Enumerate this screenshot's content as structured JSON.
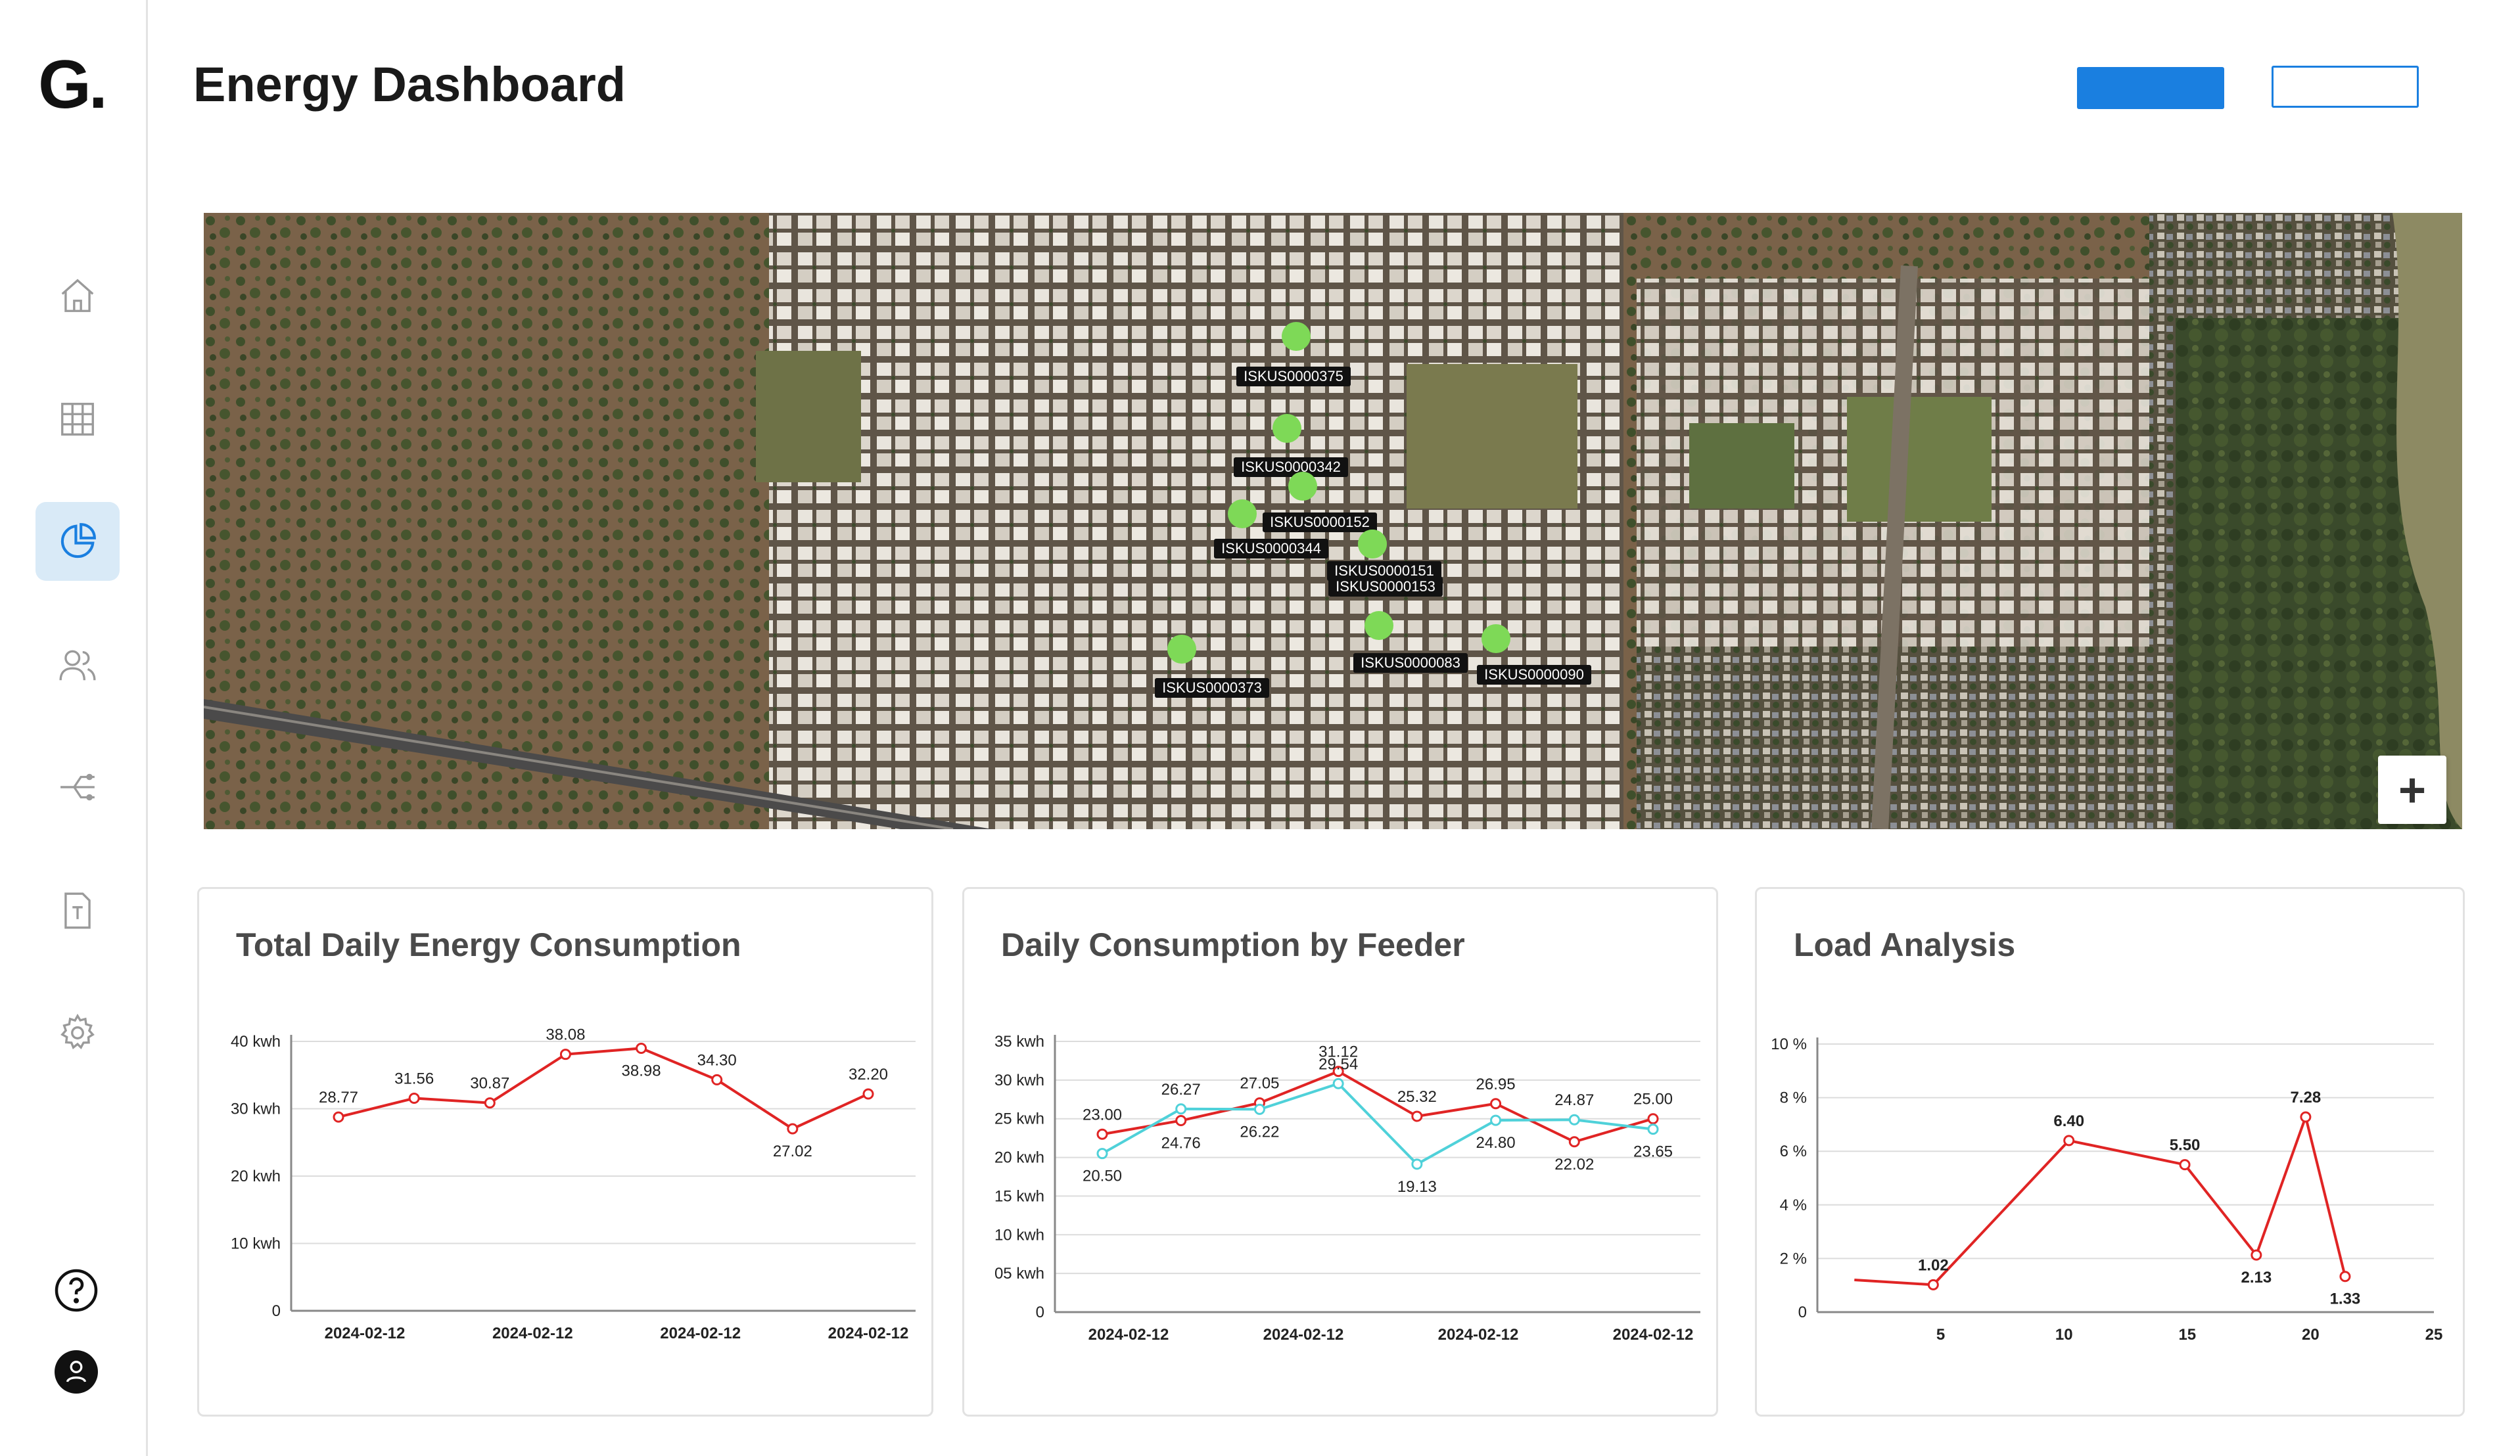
{
  "app": {
    "logo": "G.",
    "title": "Energy Dashboard"
  },
  "header": {
    "primary_button_label": "",
    "secondary_button_label": ""
  },
  "sidebar": {
    "items": [
      {
        "name": "home",
        "icon": "home-icon",
        "active": false
      },
      {
        "name": "grid",
        "icon": "grid-icon",
        "active": false
      },
      {
        "name": "analytics",
        "icon": "pie-chart-icon",
        "active": true
      },
      {
        "name": "users",
        "icon": "users-icon",
        "active": false
      },
      {
        "name": "routing",
        "icon": "route-icon",
        "active": false
      },
      {
        "name": "templates",
        "icon": "document-icon",
        "active": false
      },
      {
        "name": "settings",
        "icon": "gear-icon",
        "active": false
      }
    ],
    "bottom": [
      {
        "name": "help",
        "icon": "help-icon"
      },
      {
        "name": "profile",
        "icon": "user-avatar-icon"
      }
    ]
  },
  "map": {
    "zoom_label": "+",
    "marker_color": "#7ed957",
    "markers": [
      {
        "label": "ISKUS0000375"
      },
      {
        "label": "ISKUS0000342"
      },
      {
        "label": "ISKUS0000152"
      },
      {
        "label": "ISKUS0000344"
      },
      {
        "label": "ISKUS0000151"
      },
      {
        "label": "ISKUS0000153"
      },
      {
        "label": "ISKUS0000083"
      },
      {
        "label": "ISKUS0000090"
      },
      {
        "label": "ISKUS0000373"
      }
    ]
  },
  "colors": {
    "accent": "#1a7fe0",
    "series_red": "#e02424",
    "series_cyan": "#4fd1d9",
    "active_nav_bg": "#d9eaf7"
  },
  "chart_data": [
    {
      "type": "line",
      "title": "Total Daily Energy Consumption",
      "x_tick_labels": [
        "2024-02-12",
        "2024-02-12",
        "2024-02-12",
        "2024-02-12"
      ],
      "y_tick_labels": [
        "0",
        "10 kwh",
        "20 kwh",
        "30 kwh",
        "40 kwh"
      ],
      "ylim": [
        0,
        40
      ],
      "grid": true,
      "series": [
        {
          "color": "#e02424",
          "values": [
            28.77,
            31.56,
            30.87,
            38.08,
            38.98,
            34.3,
            27.02,
            32.2
          ],
          "labels": [
            "28.77",
            "31.56",
            "30.87",
            "38.08",
            "38.98",
            "34.30",
            "27.02",
            "32.20"
          ]
        }
      ]
    },
    {
      "type": "line",
      "title": "Daily Consumption by Feeder",
      "x_tick_labels": [
        "2024-02-12",
        "2024-02-12",
        "2024-02-12",
        "2024-02-12"
      ],
      "y_tick_labels": [
        "0",
        "05 kwh",
        "10 kwh",
        "15 kwh",
        "20 kwh",
        "25 kwh",
        "30 kwh",
        "35 kwh"
      ],
      "ylim": [
        0,
        35
      ],
      "grid": true,
      "series": [
        {
          "color": "#e02424",
          "values": [
            23.0,
            24.76,
            27.05,
            31.12,
            25.32,
            26.95,
            22.02,
            25.0
          ],
          "labels": [
            "23.00",
            "24.76",
            "27.05",
            "31.12",
            "25.32",
            "26.95",
            "22.02",
            "25.00"
          ]
        },
        {
          "color": "#4fd1d9",
          "values": [
            20.5,
            26.27,
            26.22,
            29.54,
            19.13,
            24.8,
            24.87,
            23.65
          ],
          "labels": [
            "20.50",
            "26.27",
            "26.22",
            "29.54",
            "19.13",
            "24.80",
            "24.87",
            "23.65"
          ]
        }
      ]
    },
    {
      "type": "line",
      "title": "Load Analysis",
      "x_tick_labels": [
        "5",
        "10",
        "15",
        "20",
        "25"
      ],
      "xlim": [
        0,
        25
      ],
      "y_tick_labels": [
        "0",
        "2 %",
        "4 %",
        "6 %",
        "8 %",
        "10 %"
      ],
      "ylim": [
        0,
        10
      ],
      "grid": true,
      "series": [
        {
          "color": "#e02424",
          "x": [
            1.5,
            4.7,
            10.2,
            14.9,
            17.8,
            19.8,
            21.4
          ],
          "values": [
            1.2,
            1.02,
            6.4,
            5.5,
            2.13,
            7.28,
            1.33
          ],
          "labels": [
            "",
            "1.02",
            "6.40",
            "5.50",
            "2.13",
            "7.28",
            "1.33"
          ]
        }
      ]
    }
  ]
}
